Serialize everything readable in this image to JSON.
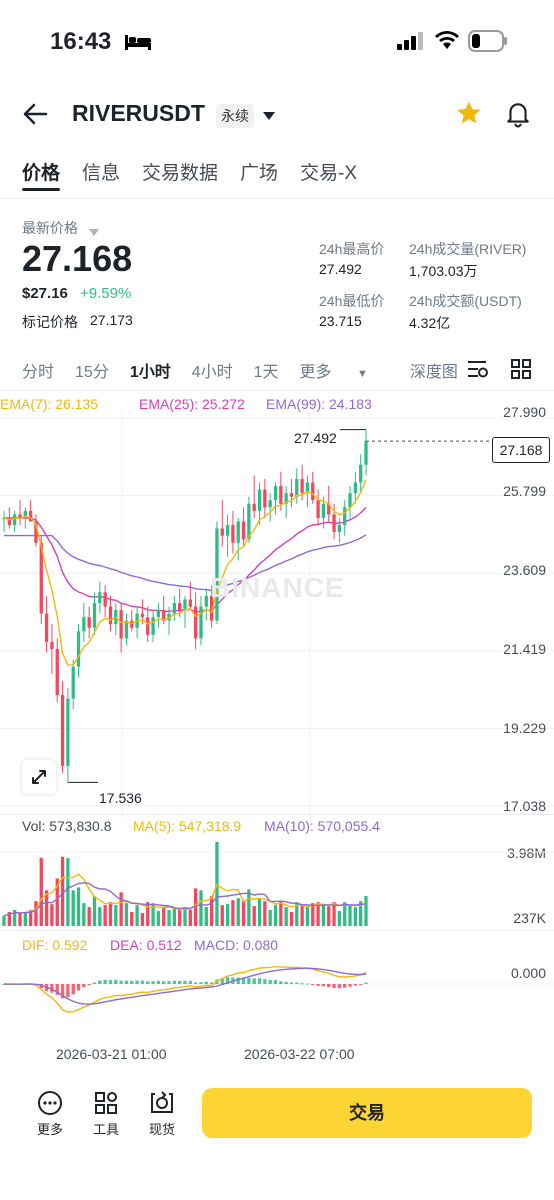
{
  "status": {
    "time": "16:43"
  },
  "header": {
    "symbol": "RIVERUSDT",
    "badge": "永续"
  },
  "tabs": [
    "价格",
    "信息",
    "交易数据",
    "广场",
    "交易-X"
  ],
  "price": {
    "latest_label": "最新价格",
    "last": "27.168",
    "usd": "$27.16",
    "change": "+9.59%",
    "mark_label": "标记价格",
    "mark": "27.173"
  },
  "stats": {
    "high_label": "24h最高价",
    "high": "27.492",
    "vol_label": "24h成交量(RIVER)",
    "vol": "1,703.03万",
    "low_label": "24h最低价",
    "low": "23.715",
    "amount_label": "24h成交额(USDT)",
    "amount": "4.32亿"
  },
  "intervals": [
    "分时",
    "15分",
    "1小时",
    "4小时",
    "1天",
    "更多",
    "深度图"
  ],
  "ema": {
    "e7": "EMA(7): 26.135",
    "e25": "EMA(25): 25.272",
    "e99": "EMA(99): 24.183"
  },
  "price_axis": [
    "27.990",
    "25.799",
    "23.609",
    "21.419",
    "19.229",
    "17.038"
  ],
  "price_tag": "27.168",
  "hi_marker": "27.492",
  "lo_marker": "17.536",
  "watermark": "BINANCE",
  "volume": {
    "vol": "Vol: 573,830.8",
    "ma5": "MA(5): 547,318.9",
    "ma10": "MA(10): 570,055.4",
    "top": "3.98M",
    "bottom": "237K"
  },
  "macd": {
    "dif": "DIF: 0.592",
    "dea": "DEA: 0.512",
    "macd": "MACD: 0.080",
    "zero": "0.000"
  },
  "time_axis": [
    "2026-03-21 01:00",
    "2026-03-22 07:00"
  ],
  "bottom": {
    "more": "更多",
    "tools": "工具",
    "spot": "现货",
    "trade": "交易"
  },
  "colors": {
    "up": "#2ebd85",
    "down": "#f6465d",
    "ema7": "#f0b90b",
    "ema25": "#d63fb7",
    "ema99": "#8e6bd1",
    "accent": "#fcd535"
  },
  "chart_data": {
    "type": "candlestick",
    "ylim": [
      17.038,
      27.99
    ],
    "candles": [
      [
        25.0,
        25.2,
        24.6,
        25.0
      ],
      [
        25.0,
        25.3,
        24.7,
        24.8
      ],
      [
        24.8,
        25.2,
        24.6,
        25.1
      ],
      [
        25.1,
        25.5,
        24.8,
        25.0
      ],
      [
        25.0,
        25.3,
        24.7,
        25.2
      ],
      [
        25.2,
        25.5,
        24.9,
        24.9
      ],
      [
        24.9,
        25.1,
        24.2,
        24.3
      ],
      [
        24.3,
        24.5,
        22.0,
        22.3
      ],
      [
        22.3,
        22.8,
        21.2,
        21.5
      ],
      [
        21.5,
        22.0,
        20.6,
        21.3
      ],
      [
        21.3,
        21.6,
        19.8,
        20.0
      ],
      [
        20.0,
        20.4,
        17.8,
        18.0
      ],
      [
        18.0,
        20.2,
        17.536,
        19.9
      ],
      [
        19.9,
        21.0,
        19.6,
        20.8
      ],
      [
        20.8,
        22.0,
        20.5,
        21.8
      ],
      [
        21.8,
        22.6,
        21.5,
        22.2
      ],
      [
        22.2,
        22.5,
        21.6,
        21.9
      ],
      [
        21.9,
        22.9,
        21.7,
        22.6
      ],
      [
        22.6,
        23.2,
        22.3,
        22.9
      ],
      [
        22.9,
        23.1,
        22.2,
        22.5
      ],
      [
        22.5,
        22.8,
        21.8,
        22.0
      ],
      [
        22.0,
        22.6,
        21.7,
        22.4
      ],
      [
        22.4,
        22.6,
        21.2,
        21.6
      ],
      [
        21.6,
        22.3,
        21.4,
        22.1
      ],
      [
        22.1,
        22.4,
        21.8,
        21.9
      ],
      [
        21.9,
        22.5,
        21.6,
        22.3
      ],
      [
        22.3,
        22.7,
        22.0,
        22.2
      ],
      [
        22.2,
        22.5,
        21.5,
        21.7
      ],
      [
        21.7,
        22.4,
        21.5,
        22.2
      ],
      [
        22.2,
        22.6,
        21.9,
        22.4
      ],
      [
        22.4,
        22.8,
        22.0,
        22.1
      ],
      [
        22.1,
        22.5,
        21.7,
        22.3
      ],
      [
        22.3,
        22.8,
        22.1,
        22.6
      ],
      [
        22.6,
        23.0,
        22.2,
        22.4
      ],
      [
        22.4,
        22.8,
        21.9,
        22.7
      ],
      [
        22.7,
        23.2,
        22.4,
        22.5
      ],
      [
        22.5,
        22.9,
        21.3,
        21.6
      ],
      [
        21.6,
        22.8,
        21.4,
        22.5
      ],
      [
        22.5,
        23.0,
        22.1,
        22.8
      ],
      [
        22.8,
        23.1,
        21.9,
        22.1
      ],
      [
        22.1,
        24.9,
        22.0,
        24.7
      ],
      [
        24.7,
        25.5,
        24.2,
        24.5
      ],
      [
        24.5,
        25.1,
        23.9,
        24.8
      ],
      [
        24.8,
        25.2,
        24.0,
        24.3
      ],
      [
        24.3,
        25.0,
        23.8,
        24.9
      ],
      [
        24.9,
        25.3,
        24.2,
        24.4
      ],
      [
        24.4,
        25.6,
        24.3,
        25.4
      ],
      [
        25.4,
        26.2,
        25.0,
        25.2
      ],
      [
        25.2,
        26.0,
        24.8,
        25.8
      ],
      [
        25.8,
        26.1,
        25.0,
        25.3
      ],
      [
        25.3,
        25.7,
        24.9,
        25.5
      ],
      [
        25.5,
        26.0,
        25.1,
        25.9
      ],
      [
        25.9,
        26.3,
        25.2,
        25.4
      ],
      [
        25.4,
        25.9,
        25.0,
        25.7
      ],
      [
        25.7,
        26.1,
        25.3,
        25.6
      ],
      [
        25.6,
        26.4,
        25.4,
        26.1
      ],
      [
        26.1,
        26.5,
        25.5,
        25.7
      ],
      [
        25.7,
        26.2,
        25.3,
        26.0
      ],
      [
        26.0,
        26.3,
        25.4,
        25.5
      ],
      [
        25.5,
        25.8,
        24.8,
        25.0
      ],
      [
        25.0,
        25.6,
        24.7,
        25.4
      ],
      [
        25.4,
        25.9,
        24.9,
        25.1
      ],
      [
        25.1,
        25.4,
        24.4,
        24.6
      ],
      [
        24.6,
        25.0,
        24.3,
        24.8
      ],
      [
        24.8,
        25.5,
        24.5,
        25.3
      ],
      [
        25.3,
        25.9,
        25.0,
        25.7
      ],
      [
        25.7,
        26.3,
        25.4,
        26.0
      ],
      [
        26.0,
        26.8,
        25.7,
        26.5
      ],
      [
        26.5,
        27.492,
        26.2,
        27.168
      ]
    ]
  }
}
